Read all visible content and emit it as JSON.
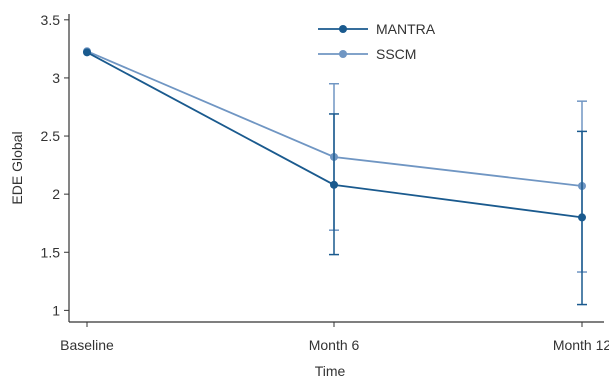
{
  "chart_data": {
    "type": "line",
    "title": "",
    "xlabel": "Time",
    "ylabel": "EDE Global",
    "categories": [
      "Baseline",
      "Month 6",
      "Month 12"
    ],
    "ylim": [
      0.9,
      3.55
    ],
    "yticks": [
      "1",
      "1.5",
      "2",
      "2.5",
      "3",
      "3.5"
    ],
    "ytick_values": [
      1,
      1.5,
      2,
      2.5,
      3,
      3.5
    ],
    "grid": false,
    "legend_position": "top-center",
    "series": [
      {
        "name": "MANTRA",
        "color": "#1a5a8e",
        "values": [
          3.22,
          2.08,
          1.8
        ],
        "error_low": [
          null,
          1.48,
          1.05
        ],
        "error_high": [
          null,
          2.69,
          2.54
        ]
      },
      {
        "name": "SSCM",
        "color": "#7096c3",
        "values": [
          3.23,
          2.32,
          2.07
        ],
        "error_low": [
          null,
          1.69,
          1.33
        ],
        "error_high": [
          null,
          2.95,
          2.8
        ]
      }
    ]
  }
}
